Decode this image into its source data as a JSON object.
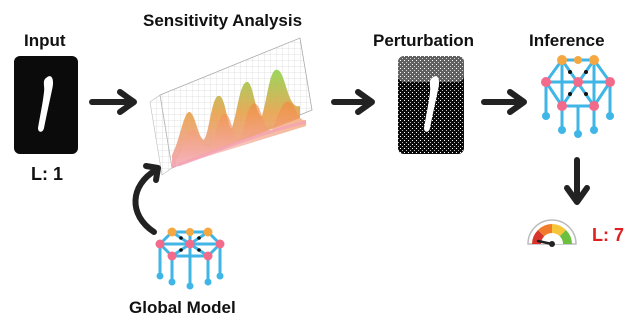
{
  "stages": {
    "input": {
      "title": "Input",
      "label": "L: 1"
    },
    "sensitivity": {
      "title": "Sensitivity Analysis"
    },
    "perturbation": {
      "title": "Perturbation"
    },
    "inference": {
      "title": "Inference",
      "prediction": "L: 7"
    },
    "global_model": {
      "title": "Global Model"
    }
  },
  "colors": {
    "panel": "#0b0b0b",
    "arrow": "#222222",
    "net_edge": "#3fb6e6",
    "net_node": "#f26b8a",
    "net_node_top": "#f5a742",
    "prediction": "#e02020"
  }
}
